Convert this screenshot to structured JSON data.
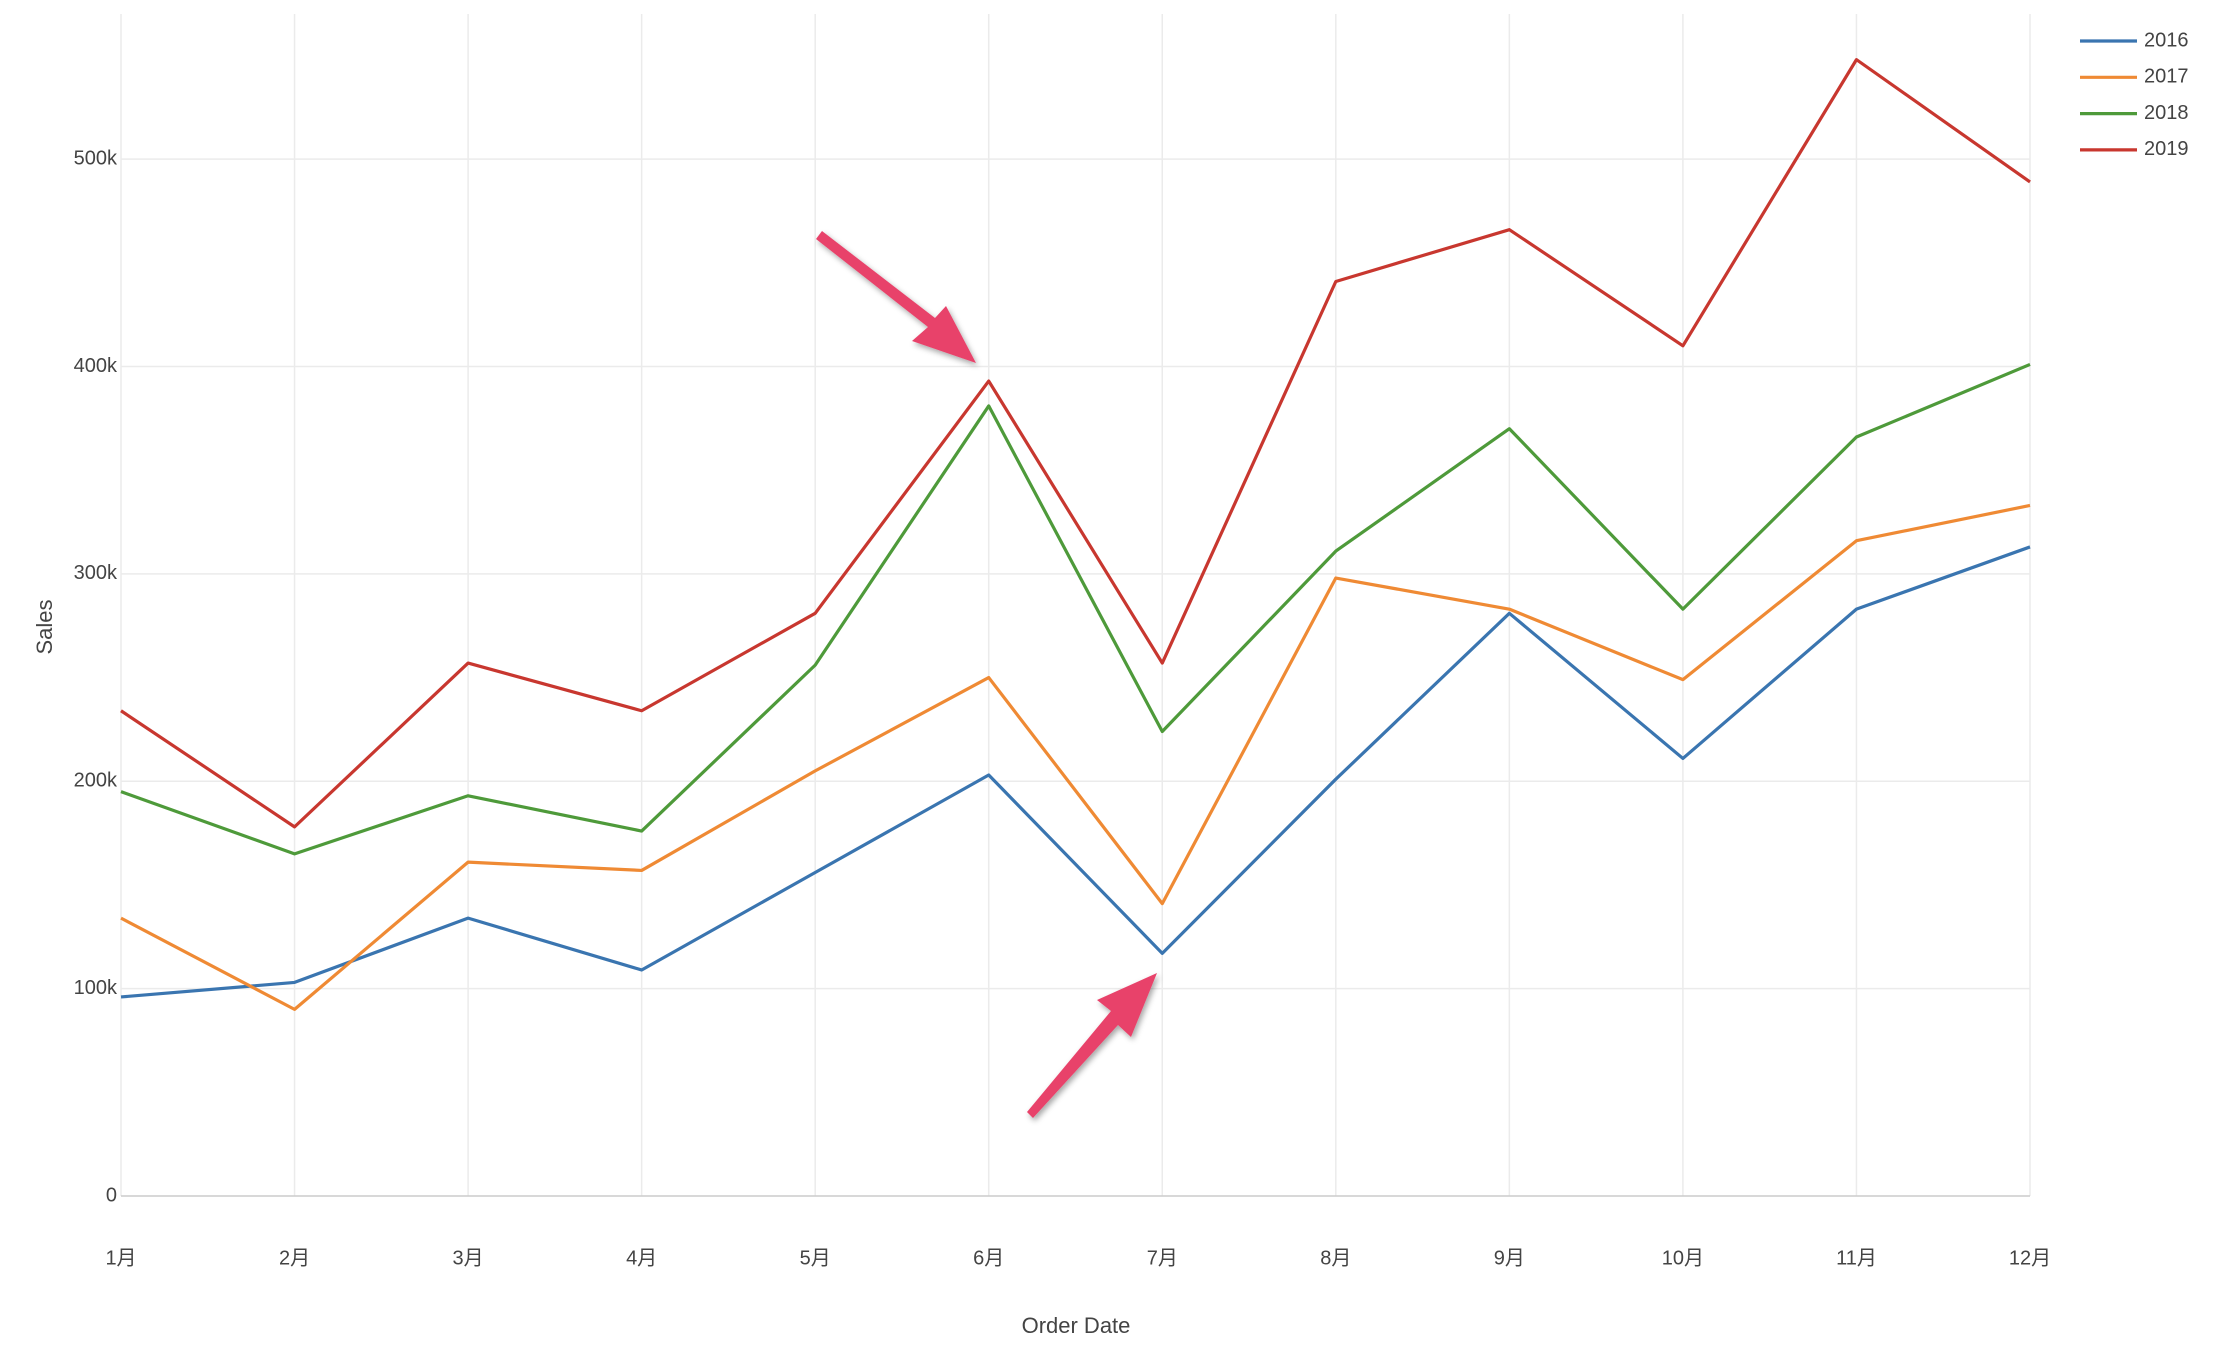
{
  "chart_data": {
    "type": "line",
    "x_label": "Order Date",
    "y_label": "Sales",
    "categories": [
      "1月",
      "2月",
      "3月",
      "4月",
      "5月",
      "6月",
      "7月",
      "8月",
      "9月",
      "10月",
      "11月",
      "12月"
    ],
    "series": [
      {
        "name": "2016",
        "color": "#3a75b0",
        "values": [
          96000,
          103000,
          134000,
          109000,
          156000,
          203000,
          117000,
          201000,
          281000,
          211000,
          283000,
          313000
        ]
      },
      {
        "name": "2017",
        "color": "#ef8a34",
        "values": [
          134000,
          90000,
          161000,
          157000,
          205000,
          250000,
          141000,
          298000,
          283000,
          249000,
          316000,
          333000
        ]
      },
      {
        "name": "2018",
        "color": "#4e9a3a",
        "values": [
          195000,
          165000,
          193000,
          176000,
          256000,
          381000,
          224000,
          311000,
          370000,
          283000,
          366000,
          401000
        ]
      },
      {
        "name": "2019",
        "color": "#c8372f",
        "values": [
          234000,
          178000,
          257000,
          234000,
          281000,
          393000,
          257000,
          441000,
          466000,
          410000,
          548000,
          489000
        ]
      }
    ],
    "ylim": [
      0,
      570000
    ],
    "yticks": [
      0,
      {
        "value": 100000,
        "label": "100k"
      },
      {
        "value": 200000,
        "label": "200k"
      },
      {
        "value": 300000,
        "label": "300k"
      },
      {
        "value": 400000,
        "label": "400k"
      },
      {
        "value": 500000,
        "label": "500k"
      }
    ],
    "grid": true,
    "legend": "top-right"
  }
}
